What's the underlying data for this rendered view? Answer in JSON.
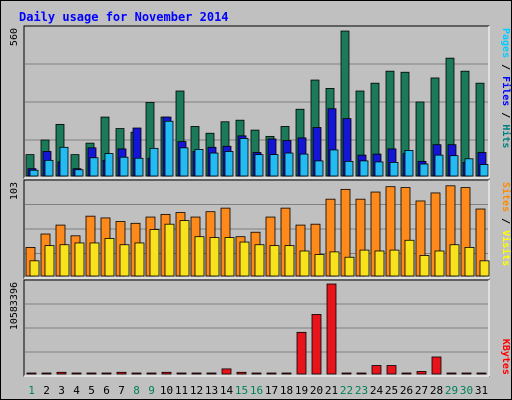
{
  "chart_data": {
    "type": "bar",
    "title": "Daily usage for November 2014",
    "days": [
      "1",
      "2",
      "3",
      "4",
      "5",
      "6",
      "7",
      "8",
      "9",
      "10",
      "11",
      "12",
      "13",
      "14",
      "15",
      "16",
      "17",
      "18",
      "19",
      "20",
      "21",
      "22",
      "23",
      "24",
      "25",
      "26",
      "27",
      "28",
      "29",
      "30",
      "31"
    ],
    "weekend_days": [
      1,
      8,
      9,
      15,
      16,
      22,
      23,
      29,
      30
    ],
    "panels": [
      {
        "id": "hits-panel",
        "max_label": "560",
        "ymax": 560,
        "side_label": [
          {
            "text": "Pages",
            "color": "#00ccff"
          },
          {
            "text": " / ",
            "color": "#000000"
          },
          {
            "text": "Files",
            "color": "#0000ff"
          },
          {
            "text": " / ",
            "color": "#000000"
          },
          {
            "text": "Hits",
            "color": "#008080"
          }
        ],
        "series": [
          {
            "name": "Hits",
            "color": "#1b7a5a",
            "values": [
              82,
              138,
              198,
              82,
              126,
              226,
              182,
              168,
              282,
              226,
              326,
              190,
              164,
              208,
              214,
              176,
              152,
              190,
              256,
              368,
              336,
              556,
              326,
              356,
              402,
              398,
              284,
              376,
              452,
              402,
              356
            ]
          },
          {
            "name": "Files",
            "color": "#1515d6",
            "values": [
              28,
              94,
              54,
              28,
              108,
              60,
              104,
              184,
              68,
              226,
              132,
              94,
              110,
              114,
              154,
              90,
              142,
              136,
              146,
              186,
              258,
              220,
              80,
              84,
              104,
              86,
              56,
              120,
              120,
              52,
              90
            ]
          },
          {
            "name": "Pages",
            "color": "#22bbf2",
            "values": [
              22,
              60,
              110,
              24,
              70,
              86,
              72,
              68,
              106,
              210,
              108,
              102,
              88,
              94,
              144,
              82,
              82,
              88,
              84,
              58,
              100,
              56,
              58,
              54,
              52,
              98,
              46,
              80,
              78,
              66,
              44
            ]
          }
        ]
      },
      {
        "id": "visits-panel",
        "max_label": "103",
        "ymax": 103,
        "side_label": [
          {
            "text": "Sites",
            "color": "#ff8800"
          },
          {
            "text": " / ",
            "color": "#000000"
          },
          {
            "text": "Visits",
            "color": "#ffff00"
          }
        ],
        "series": [
          {
            "name": "Visits",
            "color": "#f7e21c",
            "values": [
              17,
              34,
              35,
              37,
              37,
              42,
              35,
              37,
              52,
              58,
              62,
              44,
              43,
              43,
              38,
              35,
              34,
              34,
              28,
              24,
              27,
              21,
              29,
              28,
              29,
              40,
              23,
              28,
              35,
              32,
              17
            ]
          },
          {
            "name": "Sites",
            "color": "#ff8a1c",
            "values": [
              32,
              47,
              57,
              45,
              67,
              65,
              61,
              59,
              66,
              69,
              71,
              66,
              72,
              76,
              44,
              49,
              66,
              76,
              57,
              58,
              86,
              97,
              86,
              94,
              100,
              99,
              84,
              93,
              101,
              99,
              75
            ]
          }
        ]
      },
      {
        "id": "kbytes-panel",
        "max_label": "10583396",
        "ymax": 10583396,
        "side_label": [
          {
            "text": "KBytes",
            "color": "#ff0000"
          }
        ],
        "series": [
          {
            "name": "KBytes",
            "color": "#e8141c",
            "values": [
              50000,
              50000,
              200000,
              50000,
              50000,
              50000,
              200000,
              50000,
              50000,
              200000,
              50000,
              50000,
              50000,
              600000,
              200000,
              50000,
              50000,
              50000,
              4900000,
              7000000,
              10583396,
              50000,
              50000,
              1000000,
              1000000,
              50000,
              300000,
              2000000,
              50000,
              50000,
              50000
            ]
          }
        ]
      }
    ]
  }
}
